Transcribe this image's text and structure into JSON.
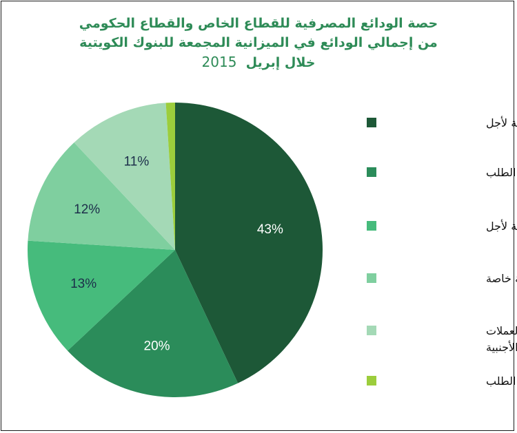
{
  "chart_data": {
    "type": "pie",
    "title_lines": [
      "حصة الودائع المصرفية للقطاع الخاص والقطاع الحكومي",
      "من إجمالي الودائع في الميزانية المجمعة للبنوك الكويتية"
    ],
    "title_line3_prefix": "خلال إبريل",
    "title_line3_year": "2015",
    "slices": [
      {
        "label": "خاصة لأجل",
        "value": 43,
        "display": "43%",
        "color": "#1d5837",
        "label_color": "#ffffff"
      },
      {
        "label": "خاصة تحت الطلب",
        "value": 20,
        "display": "20%",
        "color": "#2b8c5a",
        "label_color": "#ffffff"
      },
      {
        "label": "حكومية لأجل",
        "value": 13,
        "display": "13%",
        "color": "#46bb7c",
        "label_color": "#1c2e4a"
      },
      {
        "label": "إدخارية خاصة",
        "value": 12,
        "display": "12%",
        "color": "#7fcf9f",
        "label_color": "#1c2e4a"
      },
      {
        "label_lines": [
          "خاصة  بالعملات",
          "الأجنبية"
        ],
        "value": 11,
        "display": "11%",
        "color": "#a4d9b6",
        "label_color": "#1c2e4a"
      },
      {
        "label": "حكومية تحت الطلب",
        "value": 1,
        "display": "",
        "color": "#9ccd3c",
        "label_color": "#1c2e4a"
      }
    ],
    "legend_position": "right"
  }
}
